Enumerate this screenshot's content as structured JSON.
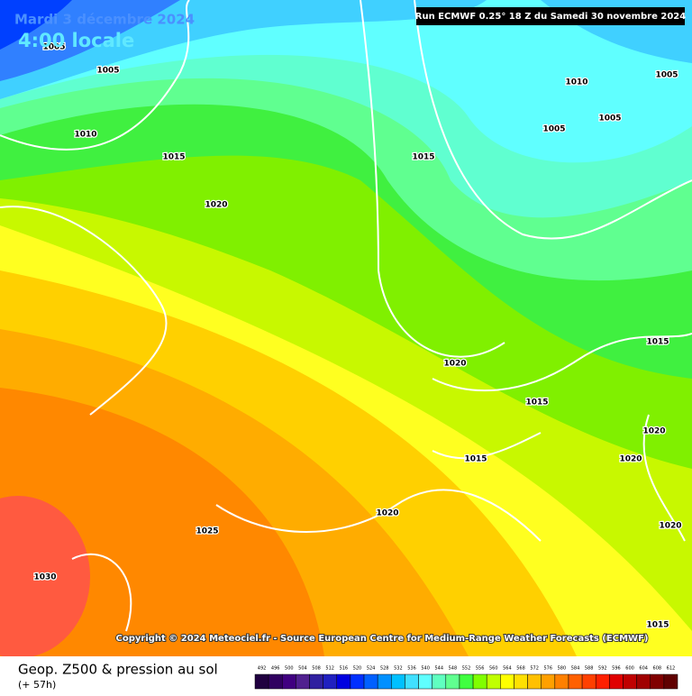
{
  "header": {
    "date": "Mardi 3 décembre 2024",
    "time": "4:00 locale",
    "run": "Run ECMWF 0.25° 18 Z du Samedi 30 novembre 2024"
  },
  "isobars": [
    "1005",
    "1005",
    "1010",
    "1015",
    "1020",
    "1015",
    "1010",
    "1005",
    "1005",
    "1005",
    "1015",
    "1020",
    "1015",
    "1020",
    "1020",
    "1015",
    "1020",
    "1025",
    "1020",
    "1030",
    "1015"
  ],
  "copyright": "Copyright © 2024 Meteociel.fr - Source European Centre for Medium-Range Weather Forecasts (ECMWF)",
  "footer": {
    "title": "Geop. Z500 & pression au sol",
    "lead": "(+ 57h)"
  },
  "legend": {
    "labels": [
      "492",
      "496",
      "500",
      "504",
      "508",
      "512",
      "516",
      "520",
      "524",
      "528",
      "532",
      "536",
      "540",
      "544",
      "548",
      "552",
      "556",
      "560",
      "564",
      "568",
      "572",
      "576",
      "580",
      "584",
      "588",
      "592",
      "596",
      "600",
      "604",
      "608",
      "612"
    ],
    "colors": [
      "#200040",
      "#300060",
      "#400080",
      "#50208f",
      "#3020a0",
      "#2020c0",
      "#0000e0",
      "#0030ff",
      "#0060ff",
      "#0090ff",
      "#00c0ff",
      "#40e0ff",
      "#60ffff",
      "#60ffc0",
      "#60ff90",
      "#40ff40",
      "#80ff00",
      "#c0ff00",
      "#ffff00",
      "#ffe000",
      "#ffc000",
      "#ffa000",
      "#ff8000",
      "#ff6000",
      "#ff4000",
      "#ff2000",
      "#e00000",
      "#c00000",
      "#a00000",
      "#800000",
      "#600000"
    ]
  }
}
